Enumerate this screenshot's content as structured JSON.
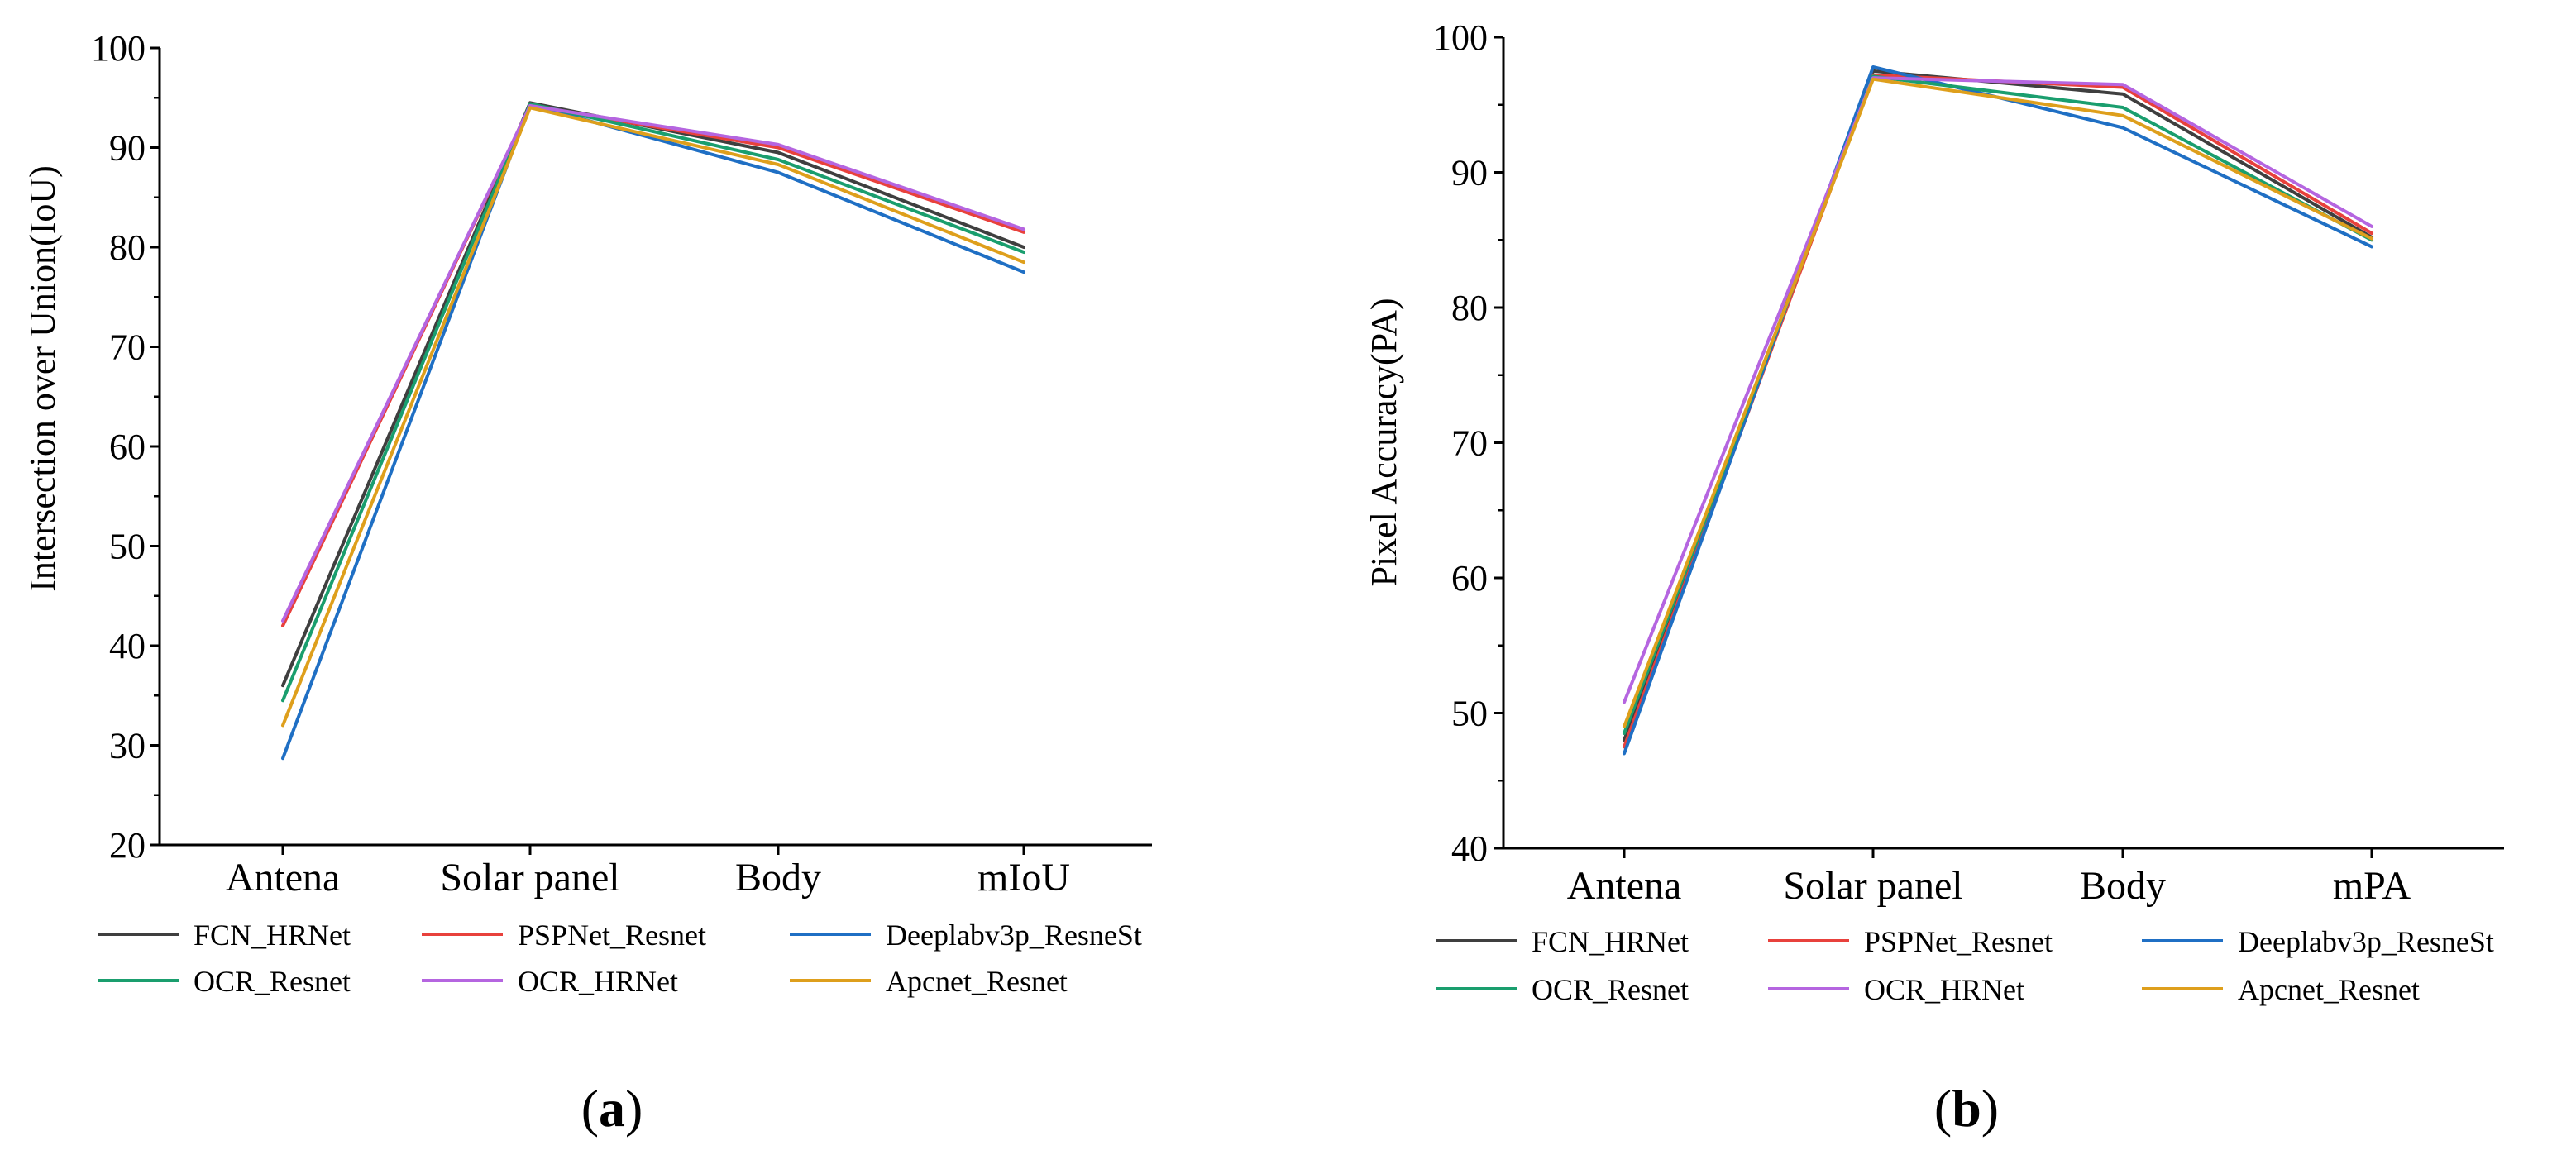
{
  "chart_data": [
    {
      "type": "line",
      "panel_label": "a",
      "title": "",
      "xlabel": "",
      "ylabel": "Intersection over Union(IoU)",
      "categories": [
        "Antena",
        "Solar panel",
        "Body",
        "mIoU"
      ],
      "ylim": [
        20,
        100
      ],
      "yticks": [
        20,
        30,
        40,
        50,
        60,
        70,
        80,
        90,
        100
      ],
      "grid": false,
      "legend_position": "bottom",
      "series": [
        {
          "name": "FCN_HRNet",
          "color": "#3f3f3f",
          "values": [
            36,
            94.5,
            89.5,
            80
          ]
        },
        {
          "name": "PSPNet_Resnet",
          "color": "#e8413c",
          "values": [
            42,
            94.2,
            90,
            81.5
          ]
        },
        {
          "name": "Deeplabv3p_ResneSt",
          "color": "#1f6fc4",
          "values": [
            28.7,
            94.3,
            87.5,
            77.5
          ]
        },
        {
          "name": "OCR_Resnet",
          "color": "#1a9e6e",
          "values": [
            34.5,
            94.4,
            88.8,
            79.5
          ]
        },
        {
          "name": "OCR_HRNet",
          "color": "#b565e0",
          "values": [
            42.5,
            94.2,
            90.3,
            81.8
          ]
        },
        {
          "name": "Apcnet_Resnet",
          "color": "#de9f1c",
          "values": [
            32,
            94,
            88.3,
            78.5
          ]
        }
      ]
    },
    {
      "type": "line",
      "panel_label": "b",
      "title": "",
      "xlabel": "",
      "ylabel": "Pixel Accuracy(PA)",
      "categories": [
        "Antena",
        "Solar panel",
        "Body",
        "mPA"
      ],
      "ylim": [
        40,
        100
      ],
      "yticks": [
        40,
        50,
        60,
        70,
        80,
        90,
        100
      ],
      "grid": false,
      "legend_position": "bottom",
      "series": [
        {
          "name": "FCN_HRNet",
          "color": "#3f3f3f",
          "values": [
            48,
            97.5,
            95.8,
            85.2
          ]
        },
        {
          "name": "PSPNet_Resnet",
          "color": "#e8413c",
          "values": [
            47.5,
            97.2,
            96.3,
            85.5
          ]
        },
        {
          "name": "Deeplabv3p_ResneSt",
          "color": "#1f6fc4",
          "values": [
            47,
            97.8,
            93.3,
            84.5
          ]
        },
        {
          "name": "OCR_Resnet",
          "color": "#1a9e6e",
          "values": [
            48.5,
            97.1,
            94.8,
            85
          ]
        },
        {
          "name": "OCR_HRNet",
          "color": "#b565e0",
          "values": [
            50.8,
            97,
            96.5,
            86
          ]
        },
        {
          "name": "Apcnet_Resnet",
          "color": "#de9f1c",
          "values": [
            49,
            96.9,
            94.2,
            85.1
          ]
        }
      ]
    }
  ]
}
